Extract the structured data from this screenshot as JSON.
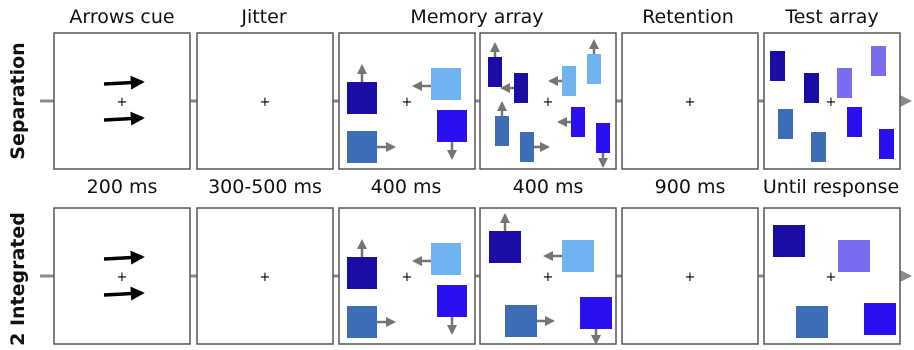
{
  "stage_headers": [
    "Arrows cue",
    "Jitter",
    "Memory array",
    "Retention",
    "Test array"
  ],
  "durations": [
    "200 ms",
    "300-500 ms",
    "400 ms",
    "400 ms",
    "900 ms",
    "Until response"
  ],
  "row_labels": [
    "Separation",
    "2 Integrated"
  ],
  "colors": {
    "navy": "#1a0da6",
    "blue": "#2a10f0",
    "steel": "#3d6db5",
    "sky": "#6fb4f0",
    "lavender": "#7a6cf0",
    "arrow_gray": "#757575",
    "timeline": "#8a8a8a"
  }
}
